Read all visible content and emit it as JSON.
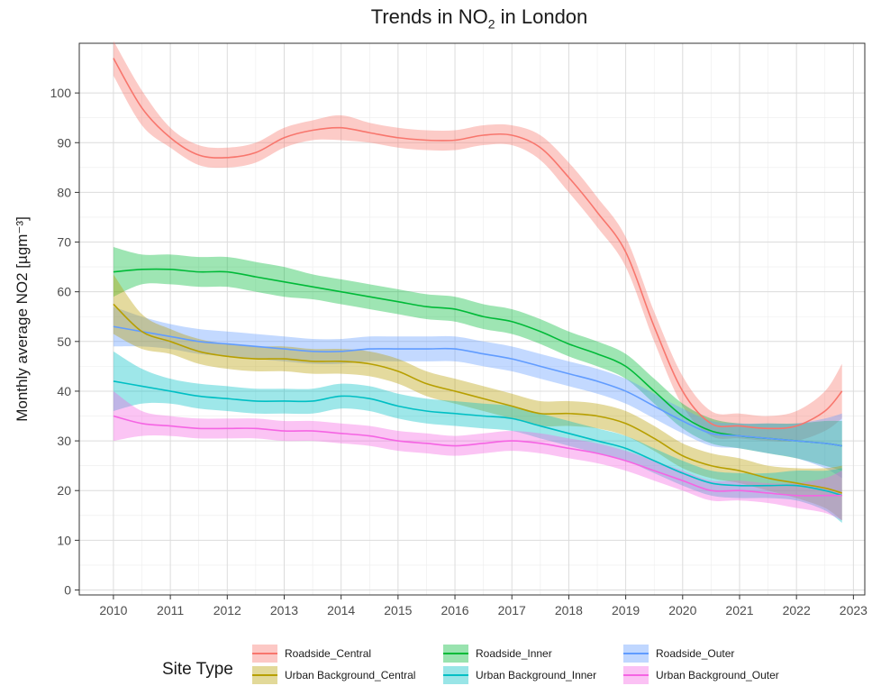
{
  "chart_data": {
    "type": "line",
    "title_prefix": "Trends in NO",
    "title_sub": "2",
    "title_suffix": " in London",
    "ylabel": "Monthly average NO2 [µgm⁻³]",
    "xlim": [
      2009.4,
      2023.2
    ],
    "ylim": [
      -1,
      110
    ],
    "x_ticks": [
      2010,
      2011,
      2012,
      2013,
      2014,
      2015,
      2016,
      2017,
      2018,
      2019,
      2020,
      2021,
      2022,
      2023
    ],
    "y_ticks": [
      0,
      10,
      20,
      30,
      40,
      50,
      60,
      70,
      80,
      90,
      100
    ],
    "grid": true,
    "legend": {
      "title": "Site Type",
      "position": "bottom"
    },
    "x": [
      2010,
      2010.5,
      2011,
      2011.5,
      2012,
      2012.5,
      2013,
      2013.5,
      2014,
      2014.5,
      2015,
      2015.5,
      2016,
      2016.5,
      2017,
      2017.5,
      2018,
      2018.5,
      2019,
      2019.5,
      2020,
      2020.5,
      2021,
      2021.5,
      2022,
      2022.5,
      2022.8
    ],
    "series": [
      {
        "name": "Roadside_Central",
        "color": "#F8766D",
        "values": [
          107,
          97,
          91,
          87.5,
          87,
          88,
          91,
          92.5,
          93,
          92,
          91,
          90.5,
          90.5,
          91.5,
          91.5,
          89,
          83,
          76,
          68,
          53,
          40,
          33.5,
          33,
          32.5,
          33,
          36,
          40
        ],
        "ci": [
          3.5,
          3.5,
          2,
          2,
          2,
          2,
          2,
          2,
          2.5,
          2,
          2,
          2,
          2,
          2,
          2,
          2.5,
          3,
          3,
          3,
          3,
          3,
          2.5,
          2.5,
          2.5,
          3,
          4,
          5.5
        ]
      },
      {
        "name": "Roadside_Inner",
        "color": "#00BA38",
        "values": [
          64,
          64.5,
          64.5,
          64,
          64,
          63,
          62,
          61,
          60,
          59,
          58,
          57,
          56.5,
          55,
          54,
          52,
          49.5,
          47.5,
          45,
          40,
          35,
          32,
          31,
          30.5,
          30,
          29.5,
          29
        ],
        "ci": [
          5,
          3,
          3,
          3,
          3,
          3,
          3,
          2.5,
          2.5,
          2.5,
          2.5,
          2.5,
          2.5,
          2.5,
          2.5,
          2.5,
          2.5,
          2.5,
          2.5,
          2.5,
          2.5,
          2.5,
          2.5,
          3,
          3.5,
          4.5,
          5
        ]
      },
      {
        "name": "Roadside_Outer",
        "color": "#619CFF",
        "values": [
          53,
          52,
          51,
          50,
          49.5,
          49,
          48.5,
          48,
          48,
          48.5,
          48.5,
          48.5,
          48.5,
          47.5,
          46.5,
          45,
          43.5,
          42,
          40,
          37,
          34,
          31.5,
          31,
          30.5,
          30,
          29.5,
          29
        ],
        "ci": [
          4,
          3,
          2.5,
          2.5,
          2.5,
          2.5,
          2.5,
          2.5,
          2.5,
          2.5,
          2.5,
          2.5,
          2.5,
          2.5,
          2.5,
          2.5,
          2.5,
          2.5,
          2.5,
          2.5,
          2.5,
          2.5,
          2.5,
          3,
          3.5,
          5,
          6.5
        ]
      },
      {
        "name": "Urban Background_Central",
        "color": "#B79F00",
        "values": [
          57.5,
          52,
          50,
          48,
          47,
          46.5,
          46.5,
          46,
          46,
          45.5,
          44,
          41.5,
          40,
          38.5,
          37,
          35.5,
          35.5,
          35,
          33.5,
          30.5,
          27,
          25,
          24,
          22.5,
          21.5,
          20.5,
          19.5
        ],
        "ci": [
          6,
          3.5,
          2.5,
          2.5,
          2.5,
          2.5,
          2.5,
          2.5,
          2.5,
          2.5,
          2.5,
          2.5,
          2.5,
          2.5,
          2.5,
          2.5,
          2.5,
          2.5,
          2.5,
          2.5,
          2.5,
          2.5,
          2.5,
          2.5,
          3,
          4,
          5.5
        ]
      },
      {
        "name": "Urban Background_Inner",
        "color": "#00BFC4",
        "values": [
          42,
          41,
          40,
          39,
          38.5,
          38,
          38,
          38,
          39,
          38.5,
          37,
          36,
          35.5,
          35,
          34.5,
          33,
          31.5,
          30,
          28.5,
          26,
          23.5,
          21.5,
          21,
          21,
          21,
          20,
          19
        ],
        "ci": [
          6,
          3.5,
          2.5,
          2.5,
          2.5,
          2.5,
          2.5,
          2.5,
          2.5,
          2.5,
          2.5,
          2.5,
          2.5,
          2.5,
          2.5,
          2.5,
          2.5,
          2.5,
          2.5,
          2.5,
          2.5,
          2.5,
          2.5,
          2.5,
          3,
          4,
          5.5
        ]
      },
      {
        "name": "Urban Background_Outer",
        "color": "#F564E3",
        "values": [
          35,
          33.5,
          33,
          32.5,
          32.5,
          32.5,
          32,
          32,
          31.5,
          31,
          30,
          29.5,
          29,
          29.5,
          30,
          29.5,
          28.5,
          27.5,
          26,
          24,
          22,
          20,
          20,
          19.5,
          19,
          19,
          19
        ],
        "ci": [
          5,
          2.5,
          2,
          2,
          2,
          2,
          2,
          2,
          2,
          2,
          2,
          2,
          2,
          2,
          2,
          2,
          2,
          2,
          2,
          2,
          2,
          2,
          2,
          2,
          2.5,
          3.5,
          5
        ]
      }
    ]
  }
}
